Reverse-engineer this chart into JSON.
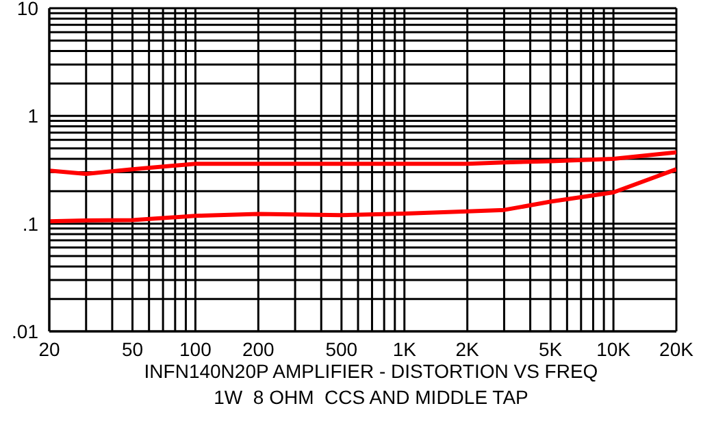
{
  "chart_data": {
    "type": "line",
    "title": "INFN140N20P AMPLIFIER - DISTORTION VS FREQ",
    "subtitle": "1W  8 OHM  CCS AND MIDDLE TAP",
    "x": [
      20,
      30,
      50,
      100,
      200,
      500,
      1000,
      2000,
      3000,
      5000,
      10000,
      20000
    ],
    "series": [
      {
        "color": "#ff0000",
        "values": [
          0.31,
          0.29,
          0.32,
          0.36,
          0.36,
          0.36,
          0.36,
          0.36,
          0.37,
          0.38,
          0.4,
          0.46
        ]
      },
      {
        "color": "#ff0000",
        "values": [
          0.105,
          0.107,
          0.108,
          0.118,
          0.123,
          0.12,
          0.124,
          0.13,
          0.134,
          0.16,
          0.195,
          0.32
        ]
      }
    ],
    "log": "xy",
    "xlim": [
      20,
      20000
    ],
    "ylim": [
      0.01,
      10
    ],
    "xticks": [
      20,
      {
        "value": 30,
        "label": null
      },
      {
        "value": 40,
        "label": null
      },
      50,
      {
        "value": 60,
        "label": null
      },
      {
        "value": 70,
        "label": null
      },
      {
        "value": 80,
        "label": null
      },
      {
        "value": 90,
        "label": null
      },
      100,
      200,
      {
        "value": 300,
        "label": null
      },
      {
        "value": 400,
        "label": null
      },
      500,
      {
        "value": 600,
        "label": null
      },
      {
        "value": 700,
        "label": null
      },
      {
        "value": 800,
        "label": null
      },
      {
        "value": 900,
        "label": null
      },
      {
        "value": 1000,
        "label": "1K"
      },
      {
        "value": 2000,
        "label": "2K"
      },
      {
        "value": 3000,
        "label": null
      },
      {
        "value": 4000,
        "label": null
      },
      {
        "value": 5000,
        "label": "5K"
      },
      {
        "value": 6000,
        "label": null
      },
      {
        "value": 7000,
        "label": null
      },
      {
        "value": 8000,
        "label": null
      },
      {
        "value": 9000,
        "label": null
      },
      {
        "value": 10000,
        "label": "10K"
      },
      {
        "value": 20000,
        "label": "20K"
      }
    ],
    "yticks": [
      {
        "value": 0.01,
        "label": ".01"
      },
      {
        "value": 0.02,
        "label": null
      },
      {
        "value": 0.03,
        "label": null
      },
      {
        "value": 0.04,
        "label": null
      },
      {
        "value": 0.05,
        "label": null
      },
      {
        "value": 0.06,
        "label": null
      },
      {
        "value": 0.07,
        "label": null
      },
      {
        "value": 0.08,
        "label": null
      },
      {
        "value": 0.09,
        "label": null
      },
      {
        "value": 0.1,
        "label": ".1"
      },
      {
        "value": 0.2,
        "label": null
      },
      {
        "value": 0.3,
        "label": null
      },
      {
        "value": 0.4,
        "label": null
      },
      {
        "value": 0.5,
        "label": null
      },
      {
        "value": 0.6,
        "label": null
      },
      {
        "value": 0.7,
        "label": null
      },
      {
        "value": 0.8,
        "label": null
      },
      {
        "value": 0.9,
        "label": null
      },
      1,
      {
        "value": 2,
        "label": null
      },
      {
        "value": 3,
        "label": null
      },
      {
        "value": 4,
        "label": null
      },
      {
        "value": 5,
        "label": null
      },
      {
        "value": 6,
        "label": null
      },
      {
        "value": 7,
        "label": null
      },
      {
        "value": 8,
        "label": null
      },
      {
        "value": 9,
        "label": null
      },
      10
    ],
    "grid": true,
    "marker": "none",
    "line_style": "solid"
  }
}
